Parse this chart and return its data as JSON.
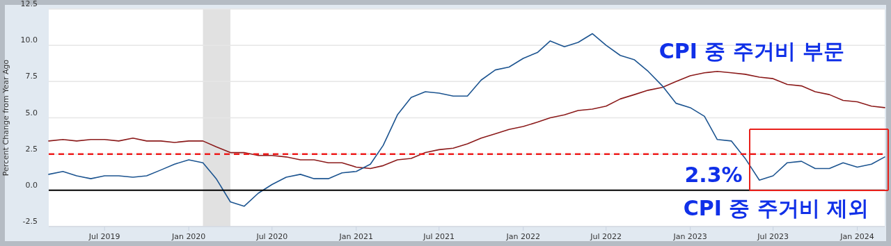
{
  "chart_data": {
    "type": "line",
    "ylabel": "Percent Change from Year Ago",
    "x": [
      "2019-03",
      "2019-04",
      "2019-05",
      "2019-06",
      "2019-07",
      "2019-08",
      "2019-09",
      "2019-10",
      "2019-11",
      "2019-12",
      "2020-01",
      "2020-02",
      "2020-03",
      "2020-04",
      "2020-05",
      "2020-06",
      "2020-07",
      "2020-08",
      "2020-09",
      "2020-10",
      "2020-11",
      "2020-12",
      "2021-01",
      "2021-02",
      "2021-03",
      "2021-04",
      "2021-05",
      "2021-06",
      "2021-07",
      "2021-08",
      "2021-09",
      "2021-10",
      "2021-11",
      "2021-12",
      "2022-01",
      "2022-02",
      "2022-03",
      "2022-04",
      "2022-05",
      "2022-06",
      "2022-07",
      "2022-08",
      "2022-09",
      "2022-10",
      "2022-11",
      "2022-12",
      "2023-01",
      "2023-02",
      "2023-03",
      "2023-04",
      "2023-05",
      "2023-06",
      "2023-07",
      "2023-08",
      "2023-09",
      "2023-10",
      "2023-11",
      "2023-12",
      "2024-01",
      "2024-02",
      "2024-03"
    ],
    "series": [
      {
        "color": "#8b1a1a",
        "values": [
          3.4,
          3.5,
          3.4,
          3.5,
          3.5,
          3.4,
          3.6,
          3.4,
          3.4,
          3.3,
          3.4,
          3.4,
          3.0,
          2.6,
          2.6,
          2.4,
          2.4,
          2.3,
          2.1,
          2.1,
          1.9,
          1.9,
          1.6,
          1.5,
          1.7,
          2.1,
          2.2,
          2.6,
          2.8,
          2.9,
          3.2,
          3.6,
          3.9,
          4.2,
          4.4,
          4.7,
          5.0,
          5.2,
          5.5,
          5.6,
          5.8,
          6.3,
          6.6,
          6.9,
          7.1,
          7.5,
          7.9,
          8.1,
          8.2,
          8.1,
          8.0,
          7.8,
          7.7,
          7.3,
          7.2,
          6.8,
          6.6,
          6.2,
          6.1,
          5.8,
          5.7
        ]
      },
      {
        "color": "#1c5490",
        "values": [
          1.1,
          1.3,
          1.0,
          0.8,
          1.0,
          1.0,
          0.9,
          1.0,
          1.4,
          1.8,
          2.1,
          1.9,
          0.8,
          -0.8,
          -1.1,
          -0.2,
          0.4,
          0.9,
          1.1,
          0.8,
          0.8,
          1.2,
          1.3,
          1.8,
          3.1,
          5.2,
          6.4,
          6.8,
          6.7,
          6.5,
          6.5,
          7.6,
          8.3,
          8.5,
          9.1,
          9.5,
          10.3,
          9.9,
          10.2,
          10.8,
          10.0,
          9.3,
          9.0,
          8.2,
          7.2,
          6.0,
          5.7,
          5.1,
          3.5,
          3.4,
          2.2,
          0.7,
          1.0,
          1.9,
          2.0,
          1.5,
          1.5,
          1.9,
          1.6,
          1.8,
          2.3
        ]
      }
    ],
    "xlim": [
      "2019-03",
      "2024-03"
    ],
    "xticks": [
      {
        "value": "2019-07",
        "label": "Jul 2019"
      },
      {
        "value": "2020-01",
        "label": "Jan 2020"
      },
      {
        "value": "2020-07",
        "label": "Jul 2020"
      },
      {
        "value": "2021-01",
        "label": "Jan 2021"
      },
      {
        "value": "2021-07",
        "label": "Jul 2021"
      },
      {
        "value": "2022-01",
        "label": "Jan 2022"
      },
      {
        "value": "2022-07",
        "label": "Jul 2022"
      },
      {
        "value": "2023-01",
        "label": "Jan 2023"
      },
      {
        "value": "2023-07",
        "label": "Jul 2023"
      },
      {
        "value": "2024-01",
        "label": "Jan 2024"
      }
    ],
    "ylim": [
      -2.5,
      12.5
    ],
    "yticks": [
      {
        "value": -2.5,
        "label": "-2.5"
      },
      {
        "value": 0,
        "label": "0.0"
      },
      {
        "value": 2.5,
        "label": "2.5"
      },
      {
        "value": 5,
        "label": "5.0"
      },
      {
        "value": 7.5,
        "label": "7.5"
      },
      {
        "value": 10,
        "label": "10.0"
      },
      {
        "value": 12.5,
        "label": "12.5"
      }
    ],
    "grid": "y",
    "bands": [
      {
        "axis": "x",
        "from": "2020-02",
        "to": "2020-04",
        "color": "#e1e1e1"
      }
    ],
    "ref_lines": [
      {
        "axis": "y",
        "value": 0,
        "color": "#000000",
        "line_style": "solid"
      },
      {
        "axis": "y",
        "value": 2.5,
        "color": "#ee1c1c",
        "line_style": "dashed"
      }
    ],
    "annotations": [
      "CPI 중 주거비 부문",
      "2.3%",
      "CPI 중 주거비 제외"
    ]
  }
}
